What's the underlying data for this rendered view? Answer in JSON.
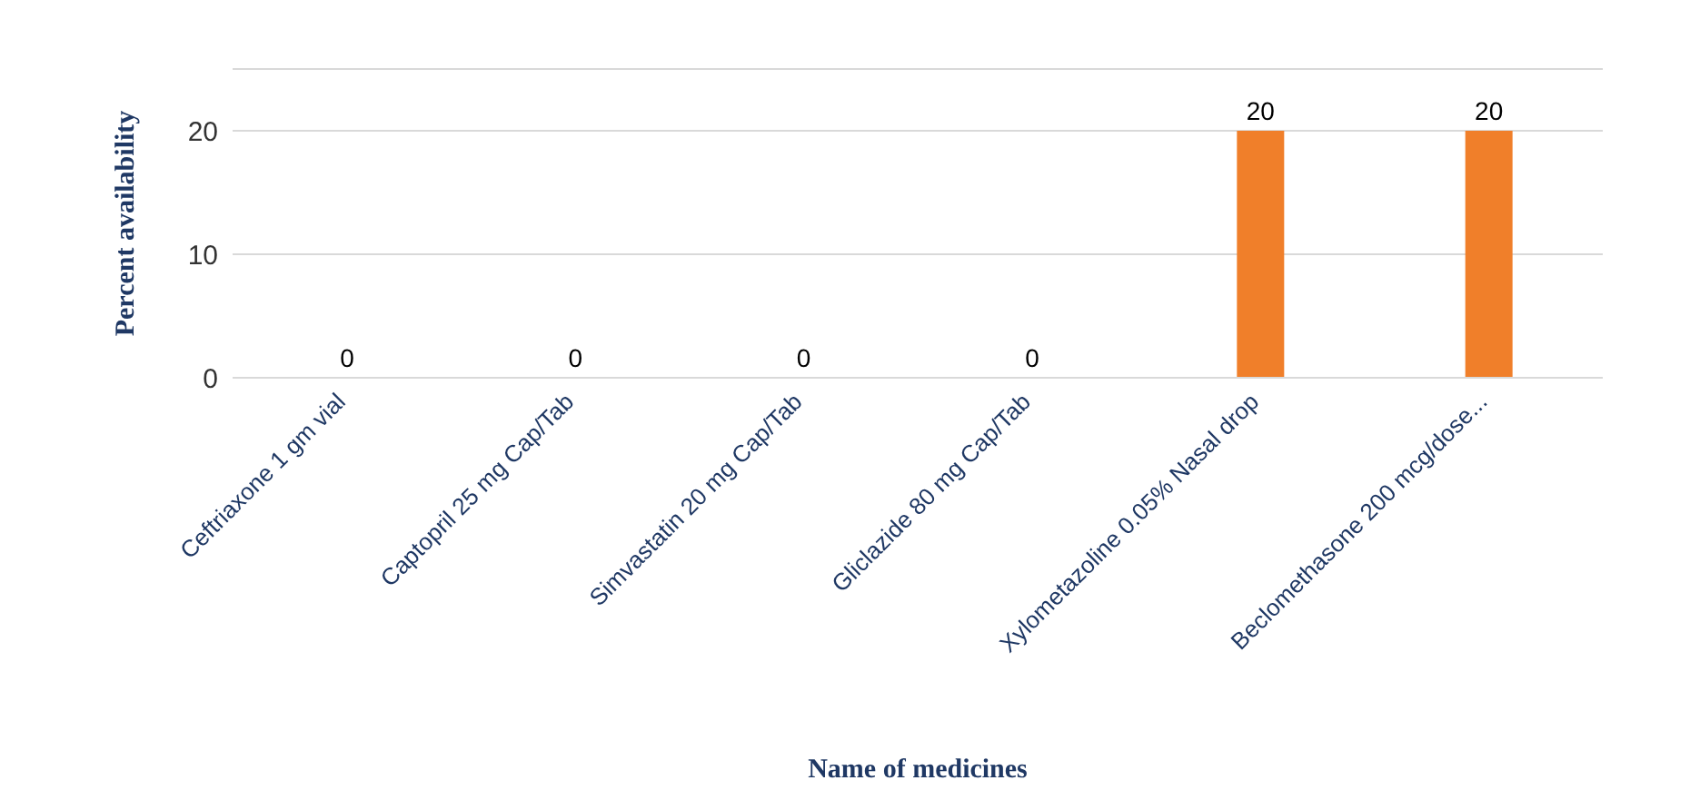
{
  "chart_data": {
    "type": "bar",
    "xlabel": "Name of medicines",
    "ylabel": "Percent availability",
    "categories": [
      "Ceftriaxone 1 gm vial",
      "Captopril 25 mg Cap/Tab",
      "Simvastatin 20 mg Cap/Tab",
      "Gliclazide 80 mg Cap/Tab",
      "Xylometazoline 0.05% Nasal drop",
      "Beclomethasone 200 mcg/dose..."
    ],
    "values": [
      0,
      0,
      0,
      0,
      20,
      20
    ],
    "color": "#f07f2a",
    "ylim": [
      0,
      25
    ],
    "yticks": [
      0,
      10,
      20
    ],
    "grid": "y",
    "data_labels": true
  }
}
